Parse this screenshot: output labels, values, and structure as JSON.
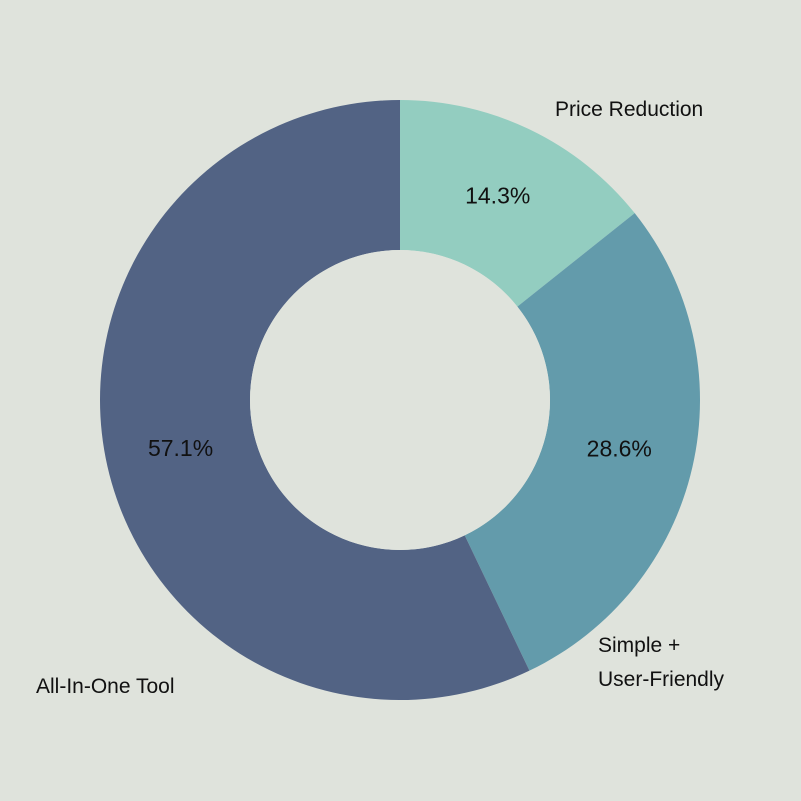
{
  "chart_data": {
    "type": "pie",
    "variant": "donut",
    "title": "",
    "slices": [
      {
        "label_lines": [
          "Price Reduction"
        ],
        "value": 14.3,
        "value_label": "14.3%",
        "color": "#93cdc0"
      },
      {
        "label_lines": [
          "Simple +",
          "User-Friendly"
        ],
        "value": 28.6,
        "value_label": "28.6%",
        "color": "#639bab"
      },
      {
        "label_lines": [
          "All-In-One Tool"
        ],
        "value": 57.1,
        "value_label": "57.1%",
        "color": "#526384"
      }
    ],
    "background_color": "#dfe3dc",
    "legend": "none"
  }
}
